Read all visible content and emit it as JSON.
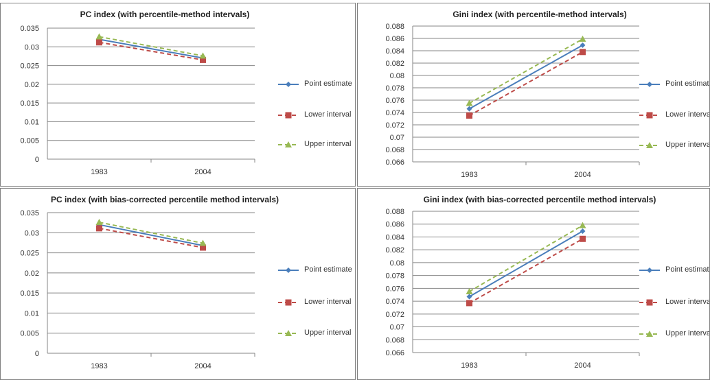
{
  "chart_data": [
    {
      "type": "line",
      "title": "PC index (with percentile-method intervals)",
      "categories": [
        "1983",
        "2004"
      ],
      "series": [
        {
          "name": "Point estimate",
          "color": "#4a7ebb",
          "values": [
            0.032,
            0.027
          ]
        },
        {
          "name": "Lower interval",
          "color": "#be4b48",
          "values": [
            0.0312,
            0.0265
          ]
        },
        {
          "name": "Upper interval",
          "color": "#98b954",
          "values": [
            0.0327,
            0.0276
          ]
        }
      ],
      "ylim": [
        0,
        0.035
      ],
      "yticks": [
        0,
        0.005,
        0.01,
        0.015,
        0.02,
        0.025,
        0.03,
        0.035
      ],
      "grid": true
    },
    {
      "type": "line",
      "title": "Gini index (with percentile-method intervals)",
      "categories": [
        "1983",
        "2004"
      ],
      "series": [
        {
          "name": "Point estimate",
          "color": "#4a7ebb",
          "values": [
            0.0746,
            0.0849
          ]
        },
        {
          "name": "Lower interval",
          "color": "#be4b48",
          "values": [
            0.0735,
            0.0838
          ]
        },
        {
          "name": "Upper interval",
          "color": "#98b954",
          "values": [
            0.0755,
            0.0859
          ]
        }
      ],
      "ylim": [
        0.066,
        0.088
      ],
      "yticks": [
        0.066,
        0.068,
        0.07,
        0.072,
        0.074,
        0.076,
        0.078,
        0.08,
        0.082,
        0.084,
        0.086,
        0.088
      ],
      "grid": true
    },
    {
      "type": "line",
      "title": "PC index (with bias-corrected percentile method intervals)",
      "categories": [
        "1983",
        "2004"
      ],
      "series": [
        {
          "name": "Point estimate",
          "color": "#4a7ebb",
          "values": [
            0.032,
            0.0268
          ]
        },
        {
          "name": "Lower interval",
          "color": "#be4b48",
          "values": [
            0.0311,
            0.0263
          ]
        },
        {
          "name": "Upper interval",
          "color": "#98b954",
          "values": [
            0.0326,
            0.0274
          ]
        }
      ],
      "ylim": [
        0,
        0.035
      ],
      "yticks": [
        0,
        0.005,
        0.01,
        0.015,
        0.02,
        0.025,
        0.03,
        0.035
      ],
      "grid": true
    },
    {
      "type": "line",
      "title": "Gini index (with  bias-corrected percentile method intervals)",
      "categories": [
        "1983",
        "2004"
      ],
      "series": [
        {
          "name": "Point estimate",
          "color": "#4a7ebb",
          "values": [
            0.0747,
            0.0849
          ]
        },
        {
          "name": "Lower interval",
          "color": "#be4b48",
          "values": [
            0.0737,
            0.0837
          ]
        },
        {
          "name": "Upper interval",
          "color": "#98b954",
          "values": [
            0.0755,
            0.0858
          ]
        }
      ],
      "ylim": [
        0.066,
        0.088
      ],
      "yticks": [
        0.066,
        0.068,
        0.07,
        0.072,
        0.074,
        0.076,
        0.078,
        0.08,
        0.082,
        0.084,
        0.086,
        0.088
      ],
      "grid": true
    }
  ]
}
